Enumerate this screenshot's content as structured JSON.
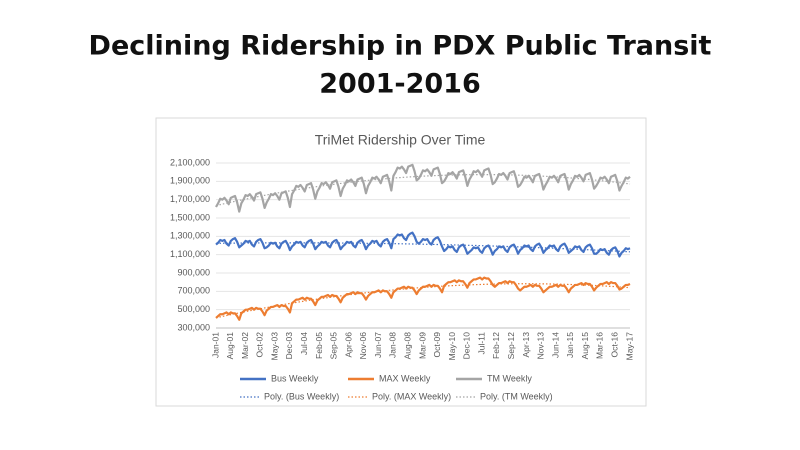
{
  "slide": {
    "title_lines": [
      "Declining Ridership in PDX Public Transit",
      "2001-2016"
    ]
  },
  "chart_data": {
    "type": "line",
    "title": "TriMet Ridership Over Time",
    "categories": [
      "Jan-01",
      null,
      null,
      null,
      null,
      null,
      null,
      "Aug-01",
      null,
      null,
      null,
      null,
      null,
      null,
      "Mar-02",
      null,
      null,
      null,
      null,
      null,
      null,
      "Oct-02",
      null,
      null,
      null,
      null,
      null,
      null,
      "May-03",
      null,
      null,
      null,
      null,
      null,
      null,
      "Dec-03",
      null,
      null,
      null,
      null,
      null,
      null,
      "Jul-04",
      null,
      null,
      null,
      null,
      null,
      null,
      "Feb-05",
      null,
      null,
      null,
      null,
      null,
      null,
      "Sep-05",
      null,
      null,
      null,
      null,
      null,
      null,
      "Apr-06",
      null,
      null,
      null,
      null,
      null,
      null,
      "Nov-06",
      null,
      null,
      null,
      null,
      null,
      null,
      "Jun-07",
      null,
      null,
      null,
      null,
      null,
      null,
      "Jan-08",
      null,
      null,
      null,
      null,
      null,
      null,
      "Aug-08",
      null,
      null,
      null,
      null,
      null,
      null,
      "Mar-09",
      null,
      null,
      null,
      null,
      null,
      null,
      "Oct-09",
      null,
      null,
      null,
      null,
      null,
      null,
      "May-10",
      null,
      null,
      null,
      null,
      null,
      null,
      "Dec-10",
      null,
      null,
      null,
      null,
      null,
      null,
      "Jul-11",
      null,
      null,
      null,
      null,
      null,
      null,
      "Feb-12",
      null,
      null,
      null,
      null,
      null,
      null,
      "Sep-12",
      null,
      null,
      null,
      null,
      null,
      null,
      "Apr-13",
      null,
      null,
      null,
      null,
      null,
      null,
      "Nov-13",
      null,
      null,
      null,
      null,
      null,
      null,
      "Jun-14",
      null,
      null,
      null,
      null,
      null,
      null,
      "Jan-15",
      null,
      null,
      null,
      null,
      null,
      null,
      "Aug-15",
      null,
      null,
      null,
      null,
      null,
      null,
      "Mar-16",
      null,
      null,
      null,
      null,
      null,
      null,
      "Oct-16",
      null,
      null,
      null,
      null,
      null,
      null,
      "May-17"
    ],
    "series": [
      {
        "name": "Bus Weekly",
        "color": "#4472c4",
        "trendline": "Poly. (Bus Weekly)",
        "values": [
          1210000,
          1230000,
          1260000,
          1250000,
          1260000,
          1220000,
          1200000,
          1250000,
          1270000,
          1280000,
          1240000,
          1180000,
          1200000,
          1220000,
          1250000,
          1240000,
          1250000,
          1210000,
          1190000,
          1240000,
          1260000,
          1270000,
          1230000,
          1170000,
          1180000,
          1200000,
          1230000,
          1220000,
          1230000,
          1190000,
          1170000,
          1220000,
          1240000,
          1250000,
          1210000,
          1150000,
          1190000,
          1210000,
          1240000,
          1230000,
          1240000,
          1200000,
          1180000,
          1230000,
          1250000,
          1260000,
          1220000,
          1160000,
          1190000,
          1210000,
          1240000,
          1230000,
          1240000,
          1200000,
          1180000,
          1230000,
          1250000,
          1260000,
          1220000,
          1160000,
          1190000,
          1210000,
          1240000,
          1230000,
          1240000,
          1200000,
          1180000,
          1230000,
          1250000,
          1260000,
          1220000,
          1160000,
          1200000,
          1220000,
          1250000,
          1240000,
          1250000,
          1210000,
          1190000,
          1240000,
          1260000,
          1270000,
          1230000,
          1170000,
          1270000,
          1290000,
          1320000,
          1310000,
          1320000,
          1280000,
          1260000,
          1310000,
          1330000,
          1340000,
          1300000,
          1240000,
          1220000,
          1240000,
          1270000,
          1260000,
          1270000,
          1230000,
          1210000,
          1260000,
          1280000,
          1290000,
          1250000,
          1190000,
          1140000,
          1160000,
          1190000,
          1180000,
          1190000,
          1150000,
          1130000,
          1180000,
          1200000,
          1210000,
          1170000,
          1110000,
          1130000,
          1150000,
          1180000,
          1170000,
          1180000,
          1140000,
          1120000,
          1170000,
          1190000,
          1200000,
          1160000,
          1100000,
          1140000,
          1160000,
          1190000,
          1180000,
          1190000,
          1150000,
          1130000,
          1180000,
          1200000,
          1210000,
          1170000,
          1110000,
          1150000,
          1170000,
          1200000,
          1190000,
          1200000,
          1160000,
          1140000,
          1190000,
          1210000,
          1220000,
          1180000,
          1120000,
          1150000,
          1170000,
          1200000,
          1190000,
          1200000,
          1160000,
          1140000,
          1190000,
          1210000,
          1220000,
          1180000,
          1120000,
          1140000,
          1160000,
          1190000,
          1180000,
          1190000,
          1150000,
          1130000,
          1180000,
          1200000,
          1210000,
          1170000,
          1110000,
          1110000,
          1130000,
          1160000,
          1150000,
          1160000,
          1120000,
          1100000,
          1150000,
          1170000,
          1180000,
          1140000,
          1080000,
          1120000,
          1140000,
          1170000,
          1160000,
          1170000
        ]
      },
      {
        "name": "MAX Weekly",
        "color": "#ed7d31",
        "trendline": "Poly. (MAX Weekly)",
        "values": [
          410000,
          430000,
          450000,
          450000,
          460000,
          470000,
          450000,
          470000,
          460000,
          460000,
          430000,
          390000,
          460000,
          480000,
          500000,
          500000,
          510000,
          520000,
          500000,
          520000,
          510000,
          510000,
          480000,
          440000,
          490000,
          510000,
          530000,
          530000,
          540000,
          550000,
          530000,
          550000,
          540000,
          540000,
          510000,
          470000,
          570000,
          590000,
          610000,
          610000,
          620000,
          630000,
          610000,
          630000,
          620000,
          620000,
          590000,
          550000,
          600000,
          620000,
          640000,
          640000,
          650000,
          660000,
          640000,
          660000,
          650000,
          650000,
          620000,
          580000,
          630000,
          650000,
          670000,
          670000,
          680000,
          690000,
          670000,
          690000,
          680000,
          680000,
          650000,
          610000,
          650000,
          670000,
          690000,
          690000,
          700000,
          710000,
          690000,
          710000,
          700000,
          700000,
          670000,
          630000,
          690000,
          710000,
          730000,
          730000,
          740000,
          750000,
          730000,
          750000,
          740000,
          740000,
          710000,
          670000,
          710000,
          730000,
          750000,
          750000,
          760000,
          770000,
          750000,
          770000,
          760000,
          760000,
          730000,
          690000,
          760000,
          780000,
          800000,
          800000,
          810000,
          820000,
          800000,
          820000,
          810000,
          810000,
          780000,
          740000,
          790000,
          810000,
          830000,
          830000,
          840000,
          850000,
          830000,
          850000,
          840000,
          840000,
          810000,
          770000,
          750000,
          770000,
          790000,
          790000,
          800000,
          810000,
          790000,
          810000,
          800000,
          800000,
          770000,
          730000,
          710000,
          730000,
          750000,
          750000,
          760000,
          770000,
          750000,
          770000,
          760000,
          760000,
          730000,
          690000,
          710000,
          730000,
          750000,
          750000,
          760000,
          770000,
          750000,
          770000,
          760000,
          760000,
          730000,
          690000,
          730000,
          750000,
          770000,
          770000,
          780000,
          790000,
          770000,
          790000,
          780000,
          780000,
          750000,
          710000,
          740000,
          760000,
          780000,
          780000,
          790000,
          800000,
          780000,
          800000,
          790000,
          790000,
          760000,
          720000,
          730000,
          750000,
          770000,
          770000,
          780000
        ]
      },
      {
        "name": "TM Weekly",
        "color": "#a5a5a5",
        "trendline": "Poly. (TM Weekly)",
        "values": [
          1620000,
          1660000,
          1710000,
          1700000,
          1720000,
          1690000,
          1650000,
          1720000,
          1730000,
          1740000,
          1670000,
          1570000,
          1660000,
          1700000,
          1750000,
          1740000,
          1760000,
          1730000,
          1690000,
          1760000,
          1770000,
          1780000,
          1710000,
          1610000,
          1670000,
          1710000,
          1760000,
          1750000,
          1770000,
          1740000,
          1700000,
          1770000,
          1780000,
          1790000,
          1720000,
          1620000,
          1760000,
          1800000,
          1850000,
          1840000,
          1860000,
          1830000,
          1790000,
          1860000,
          1870000,
          1880000,
          1810000,
          1710000,
          1790000,
          1830000,
          1880000,
          1870000,
          1890000,
          1860000,
          1820000,
          1890000,
          1900000,
          1910000,
          1840000,
          1740000,
          1820000,
          1860000,
          1910000,
          1900000,
          1920000,
          1890000,
          1850000,
          1920000,
          1930000,
          1940000,
          1870000,
          1770000,
          1850000,
          1890000,
          1940000,
          1930000,
          1950000,
          1920000,
          1880000,
          1950000,
          1960000,
          1970000,
          1900000,
          1800000,
          1960000,
          2000000,
          2050000,
          2040000,
          2060000,
          2030000,
          1990000,
          2060000,
          2070000,
          2080000,
          2010000,
          1910000,
          1930000,
          1970000,
          2020000,
          2010000,
          2030000,
          2000000,
          1960000,
          2030000,
          2040000,
          2050000,
          1980000,
          1880000,
          1900000,
          1940000,
          1990000,
          1980000,
          2000000,
          1970000,
          1930000,
          2000000,
          2010000,
          2020000,
          1950000,
          1850000,
          1920000,
          1960000,
          2010000,
          2000000,
          2020000,
          1990000,
          1950000,
          2020000,
          2030000,
          2040000,
          1970000,
          1870000,
          1890000,
          1930000,
          1980000,
          1970000,
          1990000,
          1960000,
          1920000,
          1990000,
          2000000,
          2010000,
          1940000,
          1840000,
          1860000,
          1900000,
          1950000,
          1940000,
          1960000,
          1930000,
          1890000,
          1960000,
          1970000,
          1980000,
          1910000,
          1810000,
          1860000,
          1900000,
          1950000,
          1940000,
          1960000,
          1930000,
          1890000,
          1960000,
          1970000,
          1980000,
          1910000,
          1810000,
          1870000,
          1910000,
          1960000,
          1950000,
          1970000,
          1940000,
          1900000,
          1970000,
          1980000,
          1990000,
          1920000,
          1820000,
          1850000,
          1890000,
          1940000,
          1930000,
          1950000,
          1920000,
          1880000,
          1950000,
          1960000,
          1970000,
          1900000,
          1800000,
          1850000,
          1890000,
          1940000,
          1930000,
          1950000
        ]
      }
    ],
    "ylim": [
      300000,
      2100000
    ],
    "yticks": [
      {
        "value": 300000,
        "label": "300,000"
      },
      {
        "value": 500000,
        "label": "500,000"
      },
      {
        "value": 700000,
        "label": "700,000"
      },
      {
        "value": 900000,
        "label": "900,000"
      },
      {
        "value": 1100000,
        "label": "1,100,000"
      },
      {
        "value": 1300000,
        "label": "1,300,000"
      },
      {
        "value": 1500000,
        "label": "1,500,000"
      },
      {
        "value": 1700000,
        "label": "1,700,000"
      },
      {
        "value": 1900000,
        "label": "1,900,000"
      },
      {
        "value": 2100000,
        "label": "2,100,000"
      }
    ],
    "grid": true
  }
}
